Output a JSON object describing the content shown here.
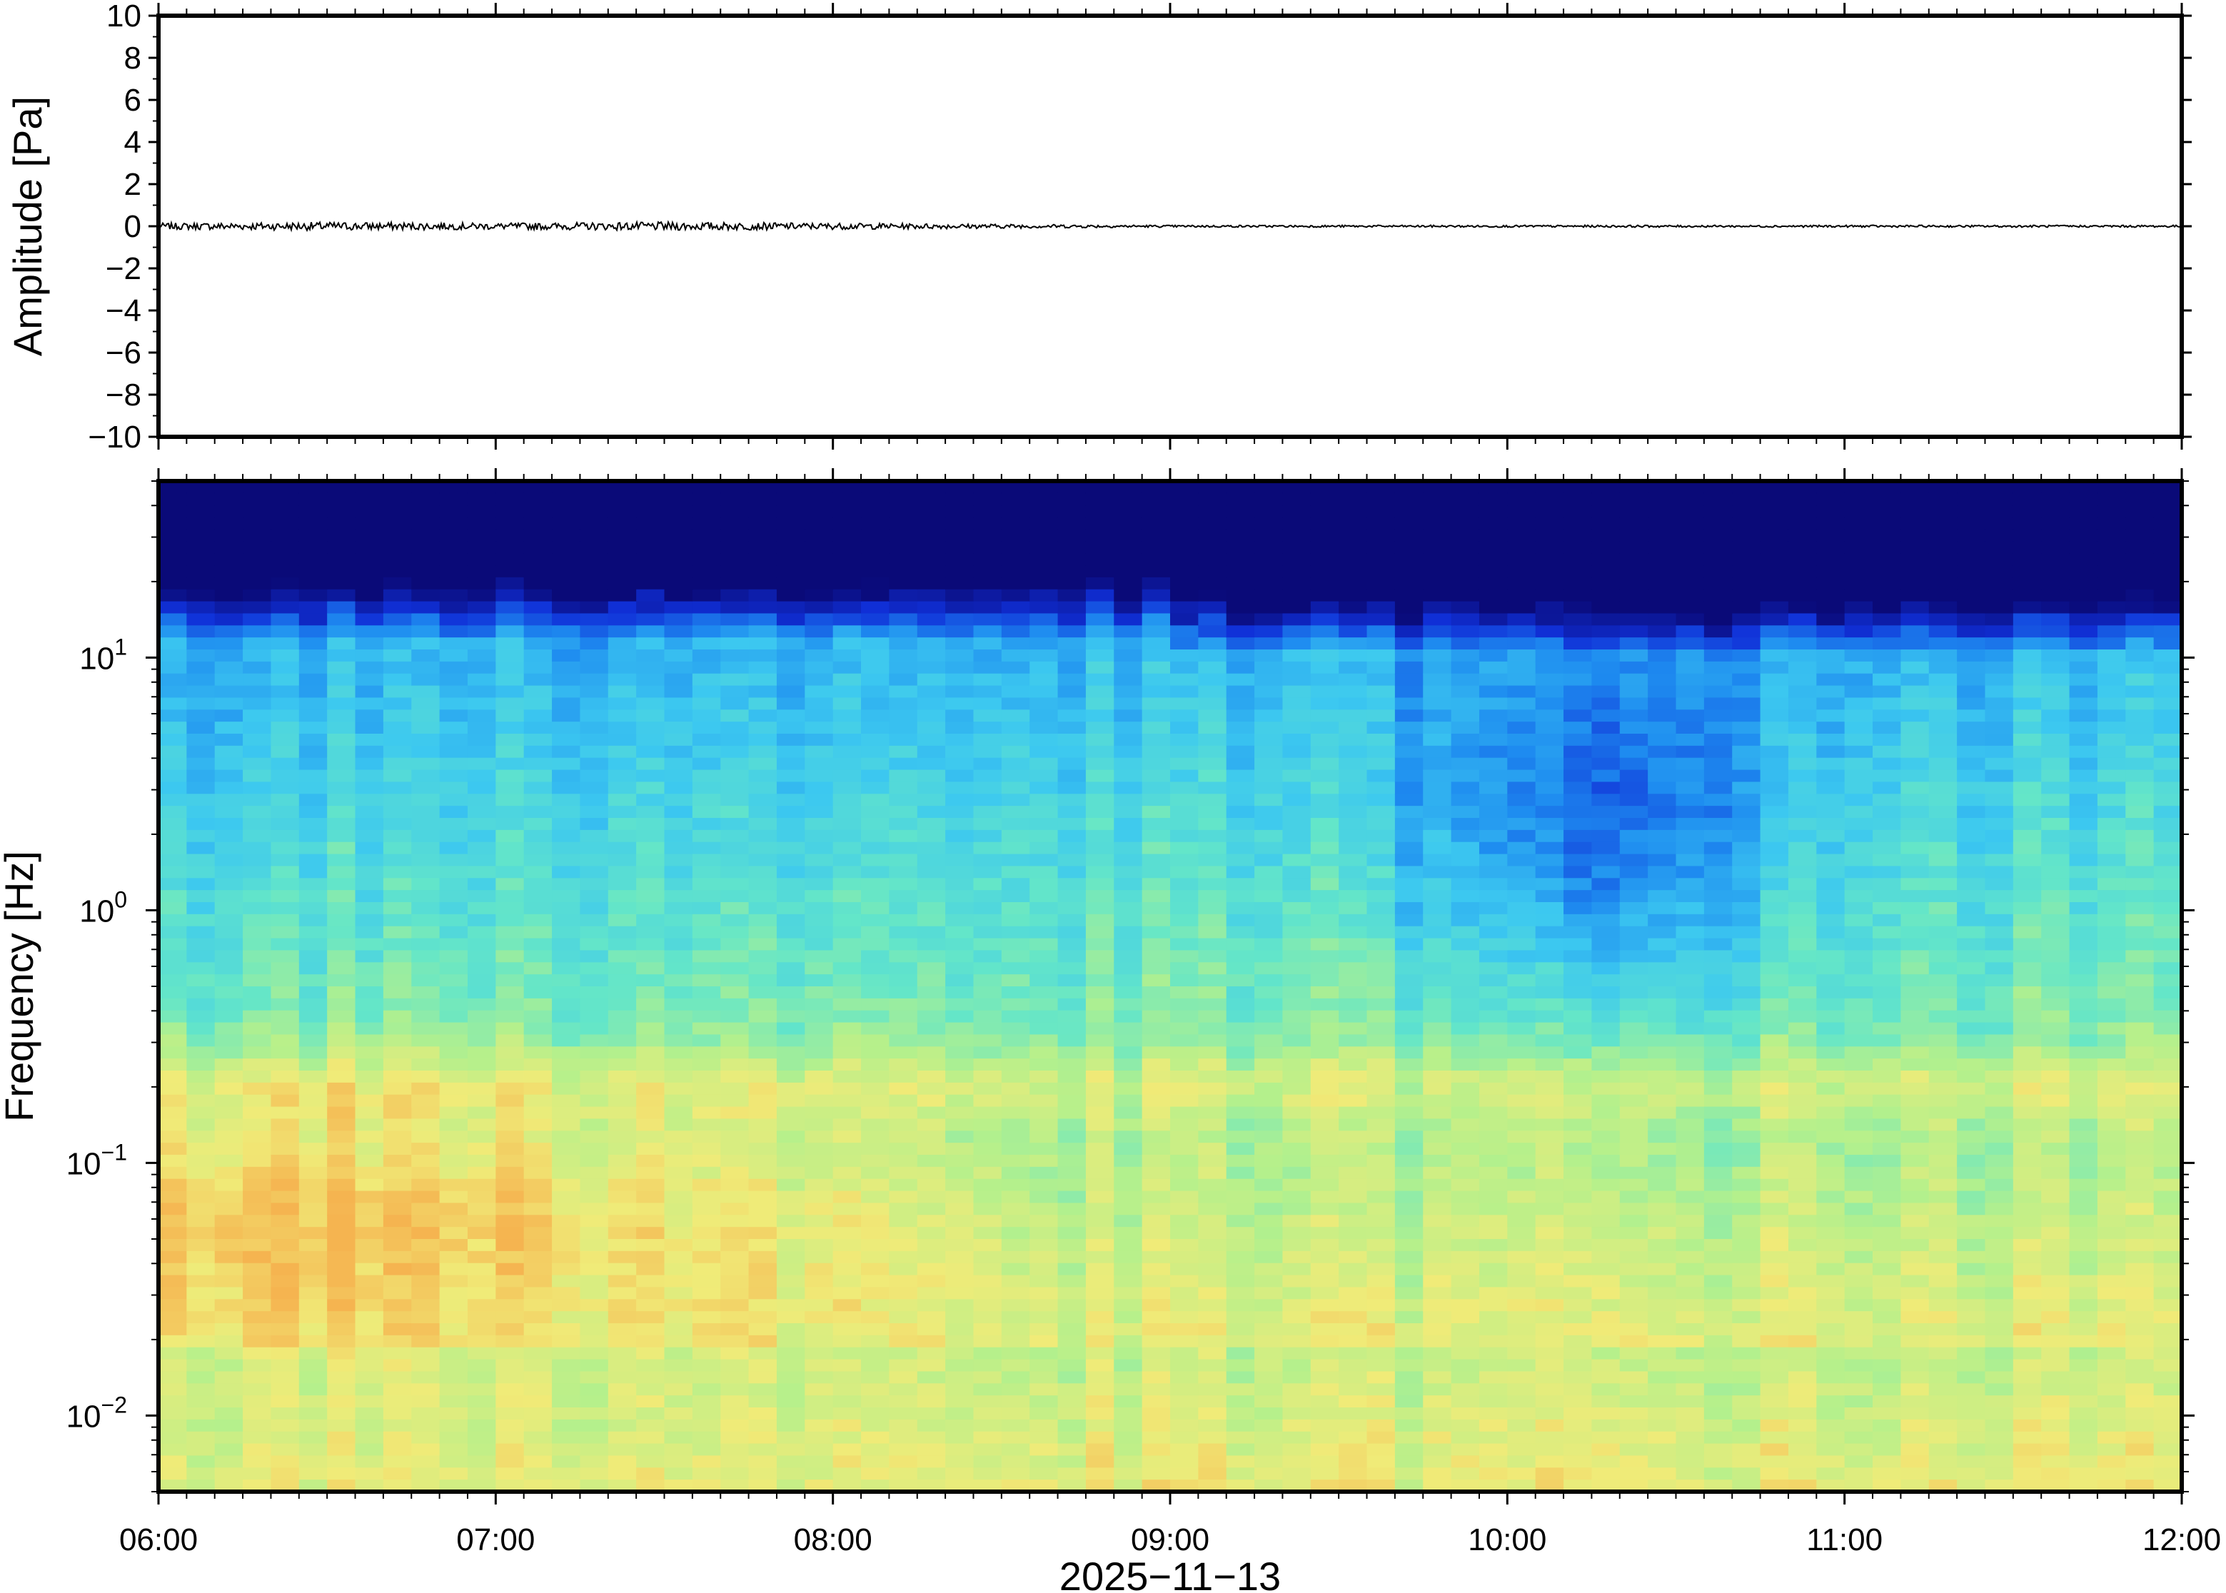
{
  "chart_data": [
    {
      "type": "line",
      "panel": "waveform",
      "ylabel": "Amplitude [Pa]",
      "ylim": [
        -10,
        10
      ],
      "y_ticks": [
        "10",
        "8",
        "6",
        "4",
        "2",
        "0",
        "−2",
        "−4",
        "−6",
        "−8",
        "−10"
      ],
      "x_range": [
        "06:00",
        "12:00"
      ],
      "series": [
        {
          "x": [
            "06:00",
            "06:30",
            "07:00",
            "07:30",
            "08:00",
            "08:30",
            "09:00",
            "09:30",
            "10:00",
            "10:30",
            "11:00",
            "11:30",
            "12:00"
          ],
          "values": [
            0.15,
            0.2,
            0.15,
            0.2,
            0.15,
            0.1,
            0.05,
            0.05,
            0.05,
            0.05,
            0.05,
            0.05,
            0.05
          ],
          "note_type": "peak amplitude envelope around 0"
        }
      ]
    },
    {
      "type": "heatmap",
      "panel": "spectrogram",
      "ylabel": "Frequency [Hz]",
      "y_scale": "log",
      "ylim": [
        0.005,
        50
      ],
      "y_ticks": [
        {
          "base": "10",
          "exp": "1"
        },
        {
          "base": "10",
          "exp": "0"
        },
        {
          "base": "10",
          "exp": "−1"
        },
        {
          "base": "10",
          "exp": "−2"
        }
      ],
      "x_ticks": [
        "06:00",
        "07:00",
        "08:00",
        "09:00",
        "10:00",
        "11:00",
        "12:00"
      ],
      "xlabel": "2025−11−13",
      "colormap": [
        "#0a0a78",
        "#1030d8",
        "#1e8cf0",
        "#3cc8f0",
        "#64e6c8",
        "#b4f08c",
        "#f0eb78",
        "#f5b450"
      ],
      "features": {
        "low_freq_high_energy_window": [
          "06:00",
          "08:30"
        ],
        "quiet_gap_window": [
          "09:45",
          "10:45"
        ],
        "persistent_band_hz": 0.2
      }
    }
  ]
}
